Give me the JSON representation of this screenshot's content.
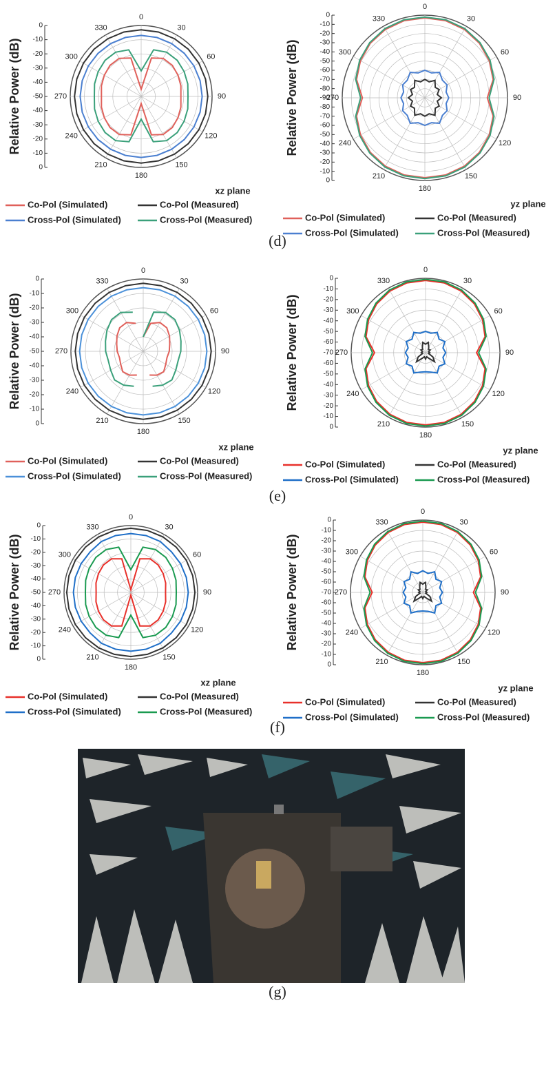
{
  "chart_data": [
    {
      "type": "polar",
      "ylabel": "Relative Power (dB)",
      "plane_label": "xz plane",
      "rlim": [
        -50,
        0
      ],
      "rticks": [
        0,
        -10,
        -20,
        -30,
        -40,
        -50
      ],
      "thetaticks": [
        0,
        30,
        60,
        90,
        120,
        150,
        180,
        210,
        240,
        270,
        300,
        330
      ],
      "theta": [
        0,
        15,
        30,
        45,
        60,
        75,
        90,
        105,
        120,
        135,
        150,
        165,
        180,
        195,
        210,
        225,
        240,
        255,
        270,
        285,
        300,
        315,
        330,
        345
      ],
      "series": [
        {
          "name": "Co-Pol (Simulated)",
          "color": "#e0605a",
          "values": [
            -45,
            -22,
            -19,
            -19,
            -20,
            -21,
            -22,
            -21,
            -20,
            -19,
            -19,
            -22,
            -45,
            -22,
            -19,
            -19,
            -20,
            -21,
            -22,
            -21,
            -20,
            -19,
            -19,
            -22
          ]
        },
        {
          "name": "Co-Pol (Measured)",
          "color": "#333333",
          "values": [
            -3,
            -3,
            -3,
            -3,
            -3,
            -3,
            -3,
            -3,
            -3,
            -3,
            -3,
            -3,
            -3,
            -3,
            -3,
            -3,
            -3,
            -3,
            -3,
            -3,
            -3,
            -3,
            -3,
            -3
          ]
        },
        {
          "name": "Cross-Pol (Simulated)",
          "color": "#4a7fd0",
          "values": [
            -7,
            -7,
            -7,
            -7,
            -7,
            -7,
            -7,
            -7,
            -7,
            -7,
            -7,
            -7,
            -7,
            -7,
            -7,
            -7,
            -7,
            -7,
            -7,
            -7,
            -7,
            -7,
            -7,
            -7
          ]
        },
        {
          "name": "Cross-Pol (Measured)",
          "color": "#3aa07a",
          "values": [
            -32,
            -16,
            -14,
            -14,
            -15,
            -16,
            -17,
            -16,
            -15,
            -14,
            -14,
            -17,
            -34,
            -17,
            -14,
            -14,
            -15,
            -16,
            -17,
            -16,
            -15,
            -14,
            -14,
            -16
          ]
        }
      ]
    },
    {
      "type": "polar",
      "ylabel": "Relative Power (dB)",
      "plane_label": "yz plane",
      "rlim": [
        -90,
        0
      ],
      "rticks": [
        0,
        -10,
        -20,
        -30,
        -40,
        -50,
        -60,
        -70,
        -80,
        -90
      ],
      "thetaticks": [
        0,
        30,
        60,
        90,
        120,
        150,
        180,
        210,
        240,
        270,
        300,
        330
      ],
      "theta": [
        0,
        15,
        30,
        45,
        60,
        75,
        90,
        105,
        120,
        135,
        150,
        165,
        180,
        195,
        210,
        225,
        240,
        255,
        270,
        285,
        300,
        315,
        330,
        345
      ],
      "series": [
        {
          "name": "Co-Pol (Simulated)",
          "color": "#e0605a",
          "values": [
            -3,
            -3,
            -4,
            -6,
            -9,
            -13,
            -22,
            -13,
            -9,
            -6,
            -4,
            -3,
            -3,
            -3,
            -4,
            -6,
            -9,
            -13,
            -22,
            -13,
            -9,
            -6,
            -4,
            -3
          ]
        },
        {
          "name": "Co-Pol (Measured)",
          "color": "#333333",
          "values": [
            -70,
            -72,
            -68,
            -74,
            -72,
            -76,
            -72,
            -76,
            -72,
            -74,
            -68,
            -72,
            -70,
            -72,
            -68,
            -74,
            -72,
            -76,
            -72,
            -76,
            -72,
            -74,
            -68,
            -72
          ]
        },
        {
          "name": "Cross-Pol (Simulated)",
          "color": "#4a7fd0",
          "values": [
            -60,
            -62,
            -58,
            -63,
            -62,
            -66,
            -64,
            -66,
            -62,
            -63,
            -58,
            -62,
            -60,
            -62,
            -58,
            -63,
            -62,
            -66,
            -64,
            -66,
            -62,
            -63,
            -58,
            -62
          ]
        },
        {
          "name": "Cross-Pol (Measured)",
          "color": "#3aa07a",
          "values": [
            -2,
            -2,
            -3,
            -5,
            -8,
            -12,
            -20,
            -12,
            -8,
            -5,
            -3,
            -2,
            -2,
            -2,
            -3,
            -5,
            -8,
            -12,
            -20,
            -12,
            -8,
            -5,
            -3,
            -2
          ]
        }
      ]
    },
    {
      "type": "polar",
      "ylabel": "Relative Power (dB)",
      "plane_label": "xz plane",
      "rlim": [
        -50,
        0
      ],
      "rticks": [
        0,
        -10,
        -20,
        -30,
        -40,
        -50
      ],
      "thetaticks": [
        0,
        30,
        60,
        90,
        120,
        150,
        180,
        210,
        240,
        270,
        300,
        330
      ],
      "theta": [
        0,
        15,
        30,
        45,
        60,
        75,
        90,
        105,
        120,
        135,
        150,
        165,
        180,
        195,
        210,
        225,
        240,
        255,
        270,
        285,
        300,
        315,
        330,
        345
      ],
      "series": [
        {
          "name": "Co-Pol (Simulated)",
          "color": "#e0605a",
          "values": [
            -40,
            -30,
            -27,
            -27,
            -29,
            -31,
            -32,
            -33,
            -32,
            -30,
            -31,
            -33,
            null,
            -33,
            -31,
            -30,
            -32,
            -33,
            -32,
            -31,
            -29,
            -27,
            -27,
            -30
          ]
        },
        {
          "name": "Co-Pol (Measured)",
          "color": "#333333",
          "values": [
            -3,
            -3,
            -3,
            -3,
            -3,
            -3,
            -3,
            -3,
            -3,
            -3,
            -3,
            -3,
            -3,
            -3,
            -3,
            -3,
            -3,
            -3,
            -3,
            -3,
            -3,
            -3,
            -3,
            -3
          ]
        },
        {
          "name": "Cross-Pol (Simulated)",
          "color": "#4a90d9",
          "values": [
            -6,
            -6,
            -6,
            -6,
            -6,
            -6,
            -6,
            -6,
            -6,
            -6,
            -6,
            -6,
            -6,
            -6,
            -6,
            -6,
            -6,
            -6,
            -6,
            -6,
            -6,
            -6,
            -6,
            -6
          ]
        },
        {
          "name": "Cross-Pol (Measured)",
          "color": "#3aa07a",
          "values": [
            -40,
            -22,
            -19,
            -19,
            -21,
            -23,
            -24,
            -25,
            -24,
            -22,
            -23,
            -25,
            null,
            -25,
            -23,
            -22,
            -24,
            -25,
            -24,
            -23,
            -21,
            -19,
            -19,
            -22
          ]
        }
      ]
    },
    {
      "type": "polar",
      "ylabel": "Relative Power (dB)",
      "plane_label": "yz plane",
      "rlim": [
        -70,
        0
      ],
      "rticks": [
        0,
        -10,
        -20,
        -30,
        -40,
        -50,
        -60,
        -70
      ],
      "thetaticks": [
        0,
        30,
        60,
        90,
        120,
        150,
        180,
        210,
        240,
        270,
        300,
        330
      ],
      "theta": [
        0,
        15,
        30,
        45,
        60,
        75,
        90,
        105,
        120,
        135,
        150,
        165,
        180,
        195,
        210,
        225,
        240,
        255,
        270,
        285,
        300,
        315,
        330,
        345
      ],
      "series": [
        {
          "name": "Co-Pol (Simulated)",
          "color": "#e8302a",
          "values": [
            -2,
            -2,
            -3,
            -5,
            -8,
            -12,
            -22,
            -12,
            -8,
            -5,
            -3,
            -2,
            -2,
            -2,
            -3,
            -5,
            -8,
            -12,
            -22,
            -12,
            -8,
            -5,
            -3,
            -2
          ]
        },
        {
          "name": "Co-Pol (Measured)",
          "color": "#333333",
          "values": [
            -62,
            -60,
            -64,
            -66,
            -65,
            -67,
            -66,
            -67,
            -62,
            -58,
            -64,
            -66,
            -64,
            -66,
            -64,
            -58,
            -62,
            -67,
            -66,
            -67,
            -65,
            -66,
            -64,
            -60
          ]
        },
        {
          "name": "Cross-Pol (Simulated)",
          "color": "#1f6fc8",
          "values": [
            -50,
            -51,
            -48,
            -52,
            -49,
            -53,
            -51,
            -53,
            -49,
            -52,
            -48,
            -51,
            -52,
            -51,
            -48,
            -52,
            -49,
            -53,
            -51,
            -53,
            -49,
            -52,
            -48,
            -51
          ]
        },
        {
          "name": "Cross-Pol (Measured)",
          "color": "#1a9a50",
          "values": [
            -1,
            -1,
            -2,
            -4,
            -7,
            -11,
            -20,
            -11,
            -7,
            -4,
            -2,
            -1,
            -1,
            -1,
            -2,
            -4,
            -7,
            -11,
            -20,
            -11,
            -7,
            -4,
            -2,
            -1
          ]
        }
      ]
    },
    {
      "type": "polar",
      "ylabel": "Relative Power (dB)",
      "plane_label": "xz plane",
      "rlim": [
        -50,
        0
      ],
      "rticks": [
        0,
        -10,
        -20,
        -30,
        -40,
        -50
      ],
      "thetaticks": [
        0,
        30,
        60,
        90,
        120,
        150,
        180,
        210,
        240,
        270,
        300,
        330
      ],
      "theta": [
        0,
        15,
        30,
        45,
        60,
        75,
        90,
        105,
        120,
        135,
        150,
        165,
        180,
        195,
        210,
        225,
        240,
        255,
        270,
        285,
        300,
        315,
        330,
        345
      ],
      "series": [
        {
          "name": "Co-Pol (Simulated)",
          "color": "#e8302a",
          "values": [
            -48,
            -24,
            -21,
            -21,
            -22,
            -23,
            -24,
            -23,
            -22,
            -21,
            -21,
            -24,
            -48,
            -24,
            -21,
            -21,
            -22,
            -23,
            -24,
            -23,
            -22,
            -21,
            -21,
            -24
          ]
        },
        {
          "name": "Co-Pol (Measured)",
          "color": "#333333",
          "values": [
            -2,
            -2,
            -2,
            -2,
            -2,
            -2,
            -2,
            -2,
            -2,
            -2,
            -2,
            -2,
            -2,
            -2,
            -2,
            -2,
            -2,
            -2,
            -2,
            -2,
            -2,
            -2,
            -2,
            -2
          ]
        },
        {
          "name": "Cross-Pol (Simulated)",
          "color": "#1f6fc8",
          "values": [
            -6,
            -6,
            -6,
            -7,
            -7,
            -7,
            -7,
            -7,
            -7,
            -7,
            -6,
            -6,
            -6,
            -6,
            -6,
            -7,
            -7,
            -7,
            -7,
            -7,
            -7,
            -7,
            -6,
            -6
          ]
        },
        {
          "name": "Cross-Pol (Measured)",
          "color": "#1a9a50",
          "values": [
            -33,
            -15,
            -13,
            -13,
            -14,
            -15,
            -16,
            -15,
            -14,
            -13,
            -13,
            -15,
            -33,
            -15,
            -13,
            -13,
            -14,
            -15,
            -16,
            -15,
            -14,
            -13,
            -13,
            -15
          ]
        }
      ]
    },
    {
      "type": "polar",
      "ylabel": "Relative Power (dB)",
      "plane_label": "yz plane",
      "rlim": [
        -70,
        0
      ],
      "rticks": [
        0,
        -10,
        -20,
        -30,
        -40,
        -50,
        -60,
        -70
      ],
      "thetaticks": [
        0,
        30,
        60,
        90,
        120,
        150,
        180,
        210,
        240,
        270,
        300,
        330
      ],
      "theta": [
        0,
        15,
        30,
        45,
        60,
        75,
        90,
        105,
        120,
        135,
        150,
        165,
        180,
        195,
        210,
        225,
        240,
        255,
        270,
        285,
        300,
        315,
        330,
        345
      ],
      "series": [
        {
          "name": "Co-Pol (Simulated)",
          "color": "#e8302a",
          "values": [
            -2,
            -2,
            -3,
            -5,
            -8,
            -12,
            -21,
            -12,
            -8,
            -5,
            -3,
            -2,
            -2,
            -2,
            -3,
            -5,
            -8,
            -12,
            -21,
            -12,
            -8,
            -5,
            -3,
            -2
          ]
        },
        {
          "name": "Co-Pol (Measured)",
          "color": "#333333",
          "values": [
            -62,
            -60,
            -64,
            -66,
            -65,
            -67,
            -66,
            -67,
            -62,
            -58,
            -64,
            -66,
            -64,
            -66,
            -64,
            -58,
            -62,
            -67,
            -66,
            -67,
            -65,
            -66,
            -64,
            -60
          ]
        },
        {
          "name": "Cross-Pol (Simulated)",
          "color": "#1f6fc8",
          "values": [
            -49,
            -51,
            -47,
            -52,
            -49,
            -53,
            -51,
            -53,
            -49,
            -52,
            -47,
            -51,
            -52,
            -51,
            -47,
            -52,
            -49,
            -53,
            -51,
            -53,
            -49,
            -52,
            -47,
            -51
          ]
        },
        {
          "name": "Cross-Pol (Measured)",
          "color": "#1a9a50",
          "values": [
            -1,
            -1,
            -2,
            -4,
            -7,
            -11,
            -19,
            -11,
            -7,
            -4,
            -2,
            -1,
            -1,
            -1,
            -2,
            -4,
            -7,
            -11,
            -19,
            -11,
            -7,
            -4,
            -2,
            -1
          ]
        }
      ]
    }
  ],
  "captions": [
    "(d)",
    "(e)",
    "(f)",
    "(g)"
  ]
}
